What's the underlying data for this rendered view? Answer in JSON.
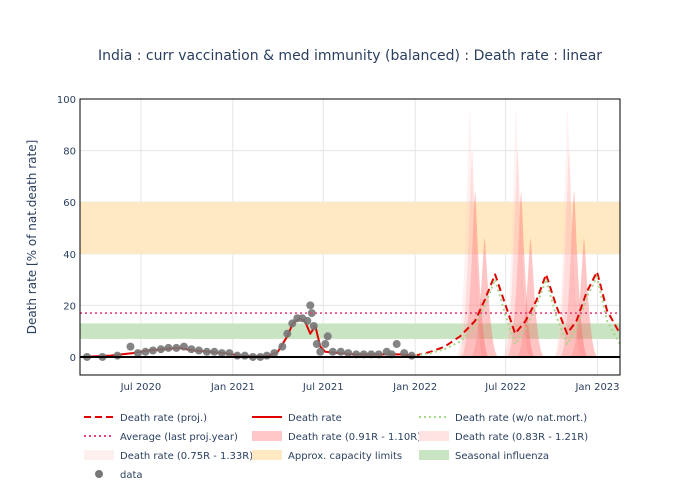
{
  "chart_data": {
    "type": "line",
    "title": "India : curr vaccination & med immunity (balanced) : Death rate : linear",
    "xlabel": "",
    "ylabel": "Death rate [% of nat.death rate]",
    "xlim": [
      "2020-03-01",
      "2023-02-15"
    ],
    "ylim": [
      -7,
      100
    ],
    "yticks": [
      0,
      20,
      40,
      60,
      80,
      100
    ],
    "xticks": [
      {
        "date": "2020-07-01",
        "label": "Jul 2020"
      },
      {
        "date": "2021-01-01",
        "label": "Jan 2021"
      },
      {
        "date": "2021-07-01",
        "label": "Jul 2021"
      },
      {
        "date": "2022-01-01",
        "label": "Jan 2022"
      },
      {
        "date": "2022-07-01",
        "label": "Jul 2022"
      },
      {
        "date": "2023-01-01",
        "label": "Jan 2023"
      }
    ],
    "grid": true,
    "bands": [
      {
        "name": "Approx. capacity limits",
        "y0": 40,
        "y1": 60,
        "color": "#ffe9c2"
      },
      {
        "name": "Seasonal influenza",
        "y0": 7,
        "y1": 13,
        "color": "#c9e4c2"
      }
    ],
    "hlines": [
      {
        "name": "Average (last proj.year)",
        "y": 17,
        "color": "#e8417c",
        "dash": "dot"
      }
    ],
    "series": [
      {
        "name": "Death rate",
        "color": "#e00000",
        "x": [
          "2020-03-01",
          "2020-05-01",
          "2020-06-15",
          "2020-07-15",
          "2020-08-15",
          "2020-09-15",
          "2020-10-15",
          "2020-11-15",
          "2020-12-15",
          "2021-01-15",
          "2021-02-15",
          "2021-03-15",
          "2021-04-01",
          "2021-04-20",
          "2021-05-01",
          "2021-05-15",
          "2021-05-25",
          "2021-06-05",
          "2021-06-15",
          "2021-06-25",
          "2021-07-05",
          "2021-08-01",
          "2021-09-01",
          "2021-10-01",
          "2021-11-01",
          "2021-12-01",
          "2022-01-01"
        ],
        "y": [
          0,
          0.5,
          1.5,
          2.5,
          3,
          3.5,
          2.5,
          2,
          1.5,
          0.5,
          0.2,
          0.5,
          2,
          8,
          13,
          15,
          14,
          9,
          12,
          4,
          2,
          1.5,
          1,
          1,
          1,
          1,
          0.5
        ]
      },
      {
        "name": "Death rate (proj.)",
        "color": "#e00000",
        "dash": "dash",
        "x": [
          "2022-01-01",
          "2022-02-01",
          "2022-03-01",
          "2022-04-01",
          "2022-05-01",
          "2022-05-20",
          "2022-06-10",
          "2022-07-01",
          "2022-07-20",
          "2022-08-10",
          "2022-09-01",
          "2022-09-20",
          "2022-10-10",
          "2022-11-01",
          "2022-11-20",
          "2022-12-10",
          "2022-12-31",
          "2023-01-20",
          "2023-02-15"
        ],
        "y": [
          0.5,
          2,
          4,
          8,
          14,
          22,
          32,
          20,
          9,
          14,
          22,
          32,
          20,
          9,
          14,
          25,
          33,
          18,
          9
        ]
      },
      {
        "name": "Death rate (w/o nat.mort.)",
        "color": "#a6d78a",
        "dash": "dot",
        "x": [
          "2022-01-01",
          "2022-02-01",
          "2022-03-01",
          "2022-04-01",
          "2022-05-01",
          "2022-05-20",
          "2022-06-10",
          "2022-07-01",
          "2022-07-20",
          "2022-08-10",
          "2022-09-01",
          "2022-09-20",
          "2022-10-10",
          "2022-11-01",
          "2022-11-20",
          "2022-12-10",
          "2022-12-31",
          "2023-01-20",
          "2023-02-15"
        ],
        "y": [
          0.5,
          1.5,
          3,
          6,
          12,
          20,
          30,
          16,
          5,
          11,
          20,
          30,
          16,
          5,
          11,
          23,
          31,
          14,
          5
        ]
      },
      {
        "name": "data",
        "color": "#777777",
        "type": "scatter",
        "x": [
          "2020-03-15",
          "2020-04-15",
          "2020-05-15",
          "2020-06-10",
          "2020-06-25",
          "2020-07-10",
          "2020-07-25",
          "2020-08-10",
          "2020-08-25",
          "2020-09-10",
          "2020-09-25",
          "2020-10-10",
          "2020-10-25",
          "2020-11-10",
          "2020-11-25",
          "2020-12-10",
          "2020-12-25",
          "2021-01-10",
          "2021-01-25",
          "2021-02-10",
          "2021-02-25",
          "2021-03-10",
          "2021-03-25",
          "2021-04-10",
          "2021-04-20",
          "2021-04-30",
          "2021-05-10",
          "2021-05-20",
          "2021-05-30",
          "2021-06-05",
          "2021-06-08",
          "2021-06-12",
          "2021-06-18",
          "2021-06-25",
          "2021-07-05",
          "2021-07-10",
          "2021-07-20",
          "2021-08-05",
          "2021-08-20",
          "2021-09-05",
          "2021-09-20",
          "2021-10-05",
          "2021-10-20",
          "2021-11-05",
          "2021-11-15",
          "2021-11-25",
          "2021-12-10",
          "2021-12-25"
        ],
        "y": [
          0,
          0,
          0.5,
          4,
          1.5,
          2,
          2.5,
          3,
          3.5,
          3.5,
          4,
          3,
          2.5,
          2,
          2,
          1.5,
          1.5,
          0.5,
          0.5,
          0,
          0,
          0.5,
          1.5,
          4,
          9,
          13,
          15,
          15,
          14,
          20,
          17,
          12,
          5,
          2,
          5,
          8,
          2,
          2,
          1.5,
          1,
          1,
          1,
          1,
          2,
          1,
          5,
          1.5,
          0.5
        ]
      }
    ],
    "band_series": [
      {
        "name": "Death rate (0.91R - 1.10R)",
        "color": "#ff5a5a",
        "opacity": 0.35,
        "peaks": [
          {
            "date": "2022-05-01",
            "y": 64
          },
          {
            "date": "2022-05-20",
            "y": 46
          },
          {
            "date": "2022-08-01",
            "y": 64
          },
          {
            "date": "2022-08-20",
            "y": 46
          },
          {
            "date": "2022-11-15",
            "y": 64
          },
          {
            "date": "2022-12-05",
            "y": 46
          }
        ]
      },
      {
        "name": "Death rate (0.83R - 1.21R)",
        "color": "#ff9a9a",
        "opacity": 0.28,
        "peaks": [
          {
            "date": "2022-04-25",
            "y": 80
          },
          {
            "date": "2022-07-25",
            "y": 80
          },
          {
            "date": "2022-11-05",
            "y": 80
          }
        ]
      },
      {
        "name": "Death rate (0.75R - 1.33R)",
        "color": "#ffcccc",
        "opacity": 0.25,
        "peaks": [
          {
            "date": "2022-04-20",
            "y": 96
          },
          {
            "date": "2022-07-22",
            "y": 96
          },
          {
            "date": "2022-11-02",
            "y": 96
          }
        ]
      }
    ],
    "legend": {
      "placement": "bottom",
      "items": [
        {
          "label": "Death rate (proj.)",
          "style": "dash-red"
        },
        {
          "label": "Death rate",
          "style": "line-red"
        },
        {
          "label": "Death rate (w/o nat.mort.)",
          "style": "dot-green"
        },
        {
          "label": "Average (last proj.year)",
          "style": "dot-pink"
        },
        {
          "label": "Death rate (0.91R - 1.10R)",
          "style": "fill-red"
        },
        {
          "label": "Death rate (0.83R - 1.21R)",
          "style": "fill-pink"
        },
        {
          "label": "Death rate (0.75R - 1.33R)",
          "style": "fill-lightpink"
        },
        {
          "label": "Approx. capacity limits",
          "style": "fill-orange"
        },
        {
          "label": "Seasonal influenza",
          "style": "fill-green"
        },
        {
          "label": "data",
          "style": "marker-grey"
        }
      ]
    }
  }
}
